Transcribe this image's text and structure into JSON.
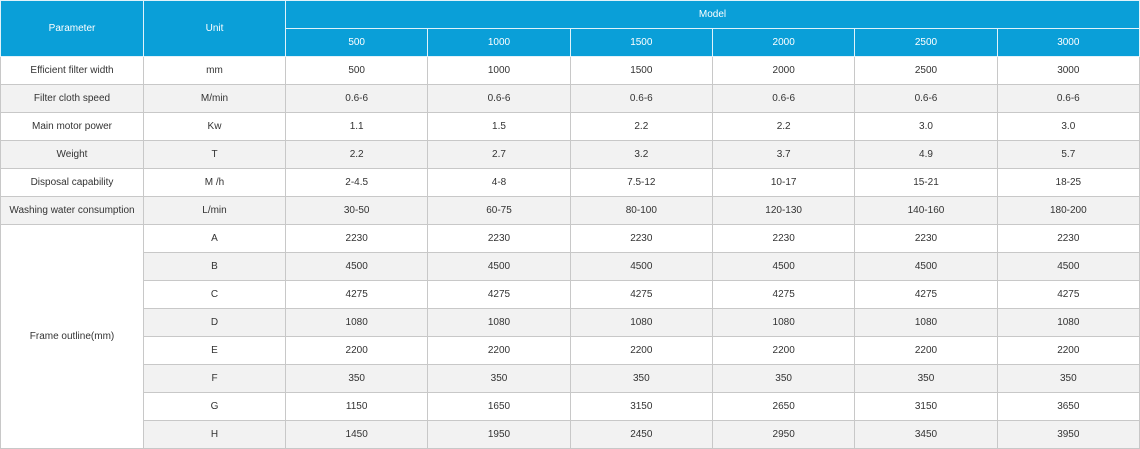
{
  "header": {
    "parameter": "Parameter",
    "unit": "Unit",
    "model": "Model",
    "models": [
      "500",
      "1000",
      "1500",
      "2000",
      "2500",
      "3000"
    ]
  },
  "rows": [
    {
      "parameter": "Efficient filter width",
      "unit": "mm",
      "values": [
        "500",
        "1000",
        "1500",
        "2000",
        "2500",
        "3000"
      ]
    },
    {
      "parameter": "Filter cloth speed",
      "unit": "M/min",
      "values": [
        "0.6-6",
        "0.6-6",
        "0.6-6",
        "0.6-6",
        "0.6-6",
        "0.6-6"
      ]
    },
    {
      "parameter": "Main motor power",
      "unit": "Kw",
      "values": [
        "1.1",
        "1.5",
        "2.2",
        "2.2",
        "3.0",
        "3.0"
      ]
    },
    {
      "parameter": "Weight",
      "unit": "T",
      "values": [
        "2.2",
        "2.7",
        "3.2",
        "3.7",
        "4.9",
        "5.7"
      ]
    },
    {
      "parameter": "Disposal capability",
      "unit": "M /h",
      "values": [
        "2-4.5",
        "4-8",
        "7.5-12",
        "10-17",
        "15-21",
        "18-25"
      ]
    },
    {
      "parameter": "Washing water consumption",
      "unit": "L/min",
      "values": [
        "30-50",
        "60-75",
        "80-100",
        "120-130",
        "140-160",
        "180-200"
      ]
    }
  ],
  "frame": {
    "parameter": "Frame outline(mm)",
    "rows": [
      {
        "unit": "A",
        "values": [
          "2230",
          "2230",
          "2230",
          "2230",
          "2230",
          "2230"
        ]
      },
      {
        "unit": "B",
        "values": [
          "4500",
          "4500",
          "4500",
          "4500",
          "4500",
          "4500"
        ]
      },
      {
        "unit": "C",
        "values": [
          "4275",
          "4275",
          "4275",
          "4275",
          "4275",
          "4275"
        ]
      },
      {
        "unit": "D",
        "values": [
          "1080",
          "1080",
          "1080",
          "1080",
          "1080",
          "1080"
        ]
      },
      {
        "unit": "E",
        "values": [
          "2200",
          "2200",
          "2200",
          "2200",
          "2200",
          "2200"
        ]
      },
      {
        "unit": "F",
        "values": [
          "350",
          "350",
          "350",
          "350",
          "350",
          "350"
        ]
      },
      {
        "unit": "G",
        "values": [
          "1150",
          "1650",
          "3150",
          "2650",
          "3150",
          "3650"
        ]
      },
      {
        "unit": "H",
        "values": [
          "1450",
          "1950",
          "2450",
          "2950",
          "3450",
          "3950"
        ]
      }
    ]
  }
}
